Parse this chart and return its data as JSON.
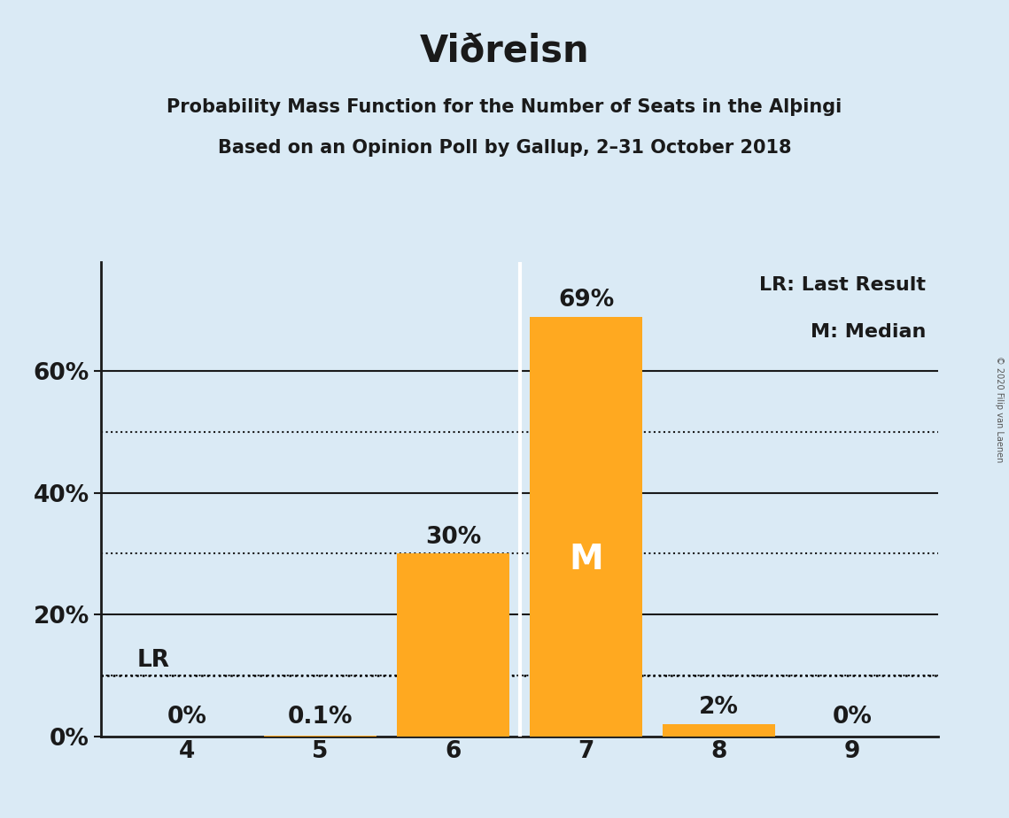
{
  "title": "Viðreisn",
  "subtitle1": "Probability Mass Function for the Number of Seats in the Alþingi",
  "subtitle2": "Based on an Opinion Poll by Gallup, 2–31 October 2018",
  "copyright": "© 2020 Filip van Laenen",
  "categories": [
    4,
    5,
    6,
    7,
    8,
    9
  ],
  "values": [
    0.0,
    0.001,
    0.3,
    0.69,
    0.02,
    0.0
  ],
  "labels": [
    "0%",
    "0.1%",
    "30%",
    "69%",
    "2%",
    "0%"
  ],
  "bar_color": "#FFA920",
  "background_color": "#daeaf5",
  "lr_value": 0.1,
  "lr_label": "LR",
  "median_bar_index": 3,
  "median_label": "M",
  "legend_lr": "LR: Last Result",
  "legend_m": "M: Median",
  "yticks_solid": [
    0.0,
    0.2,
    0.4,
    0.6
  ],
  "yticks_dotted": [
    0.1,
    0.3,
    0.5
  ],
  "ylim": [
    0,
    0.78
  ],
  "separator_between": [
    6,
    7
  ],
  "title_fontsize": 30,
  "subtitle_fontsize": 15,
  "label_fontsize": 19,
  "axis_fontsize": 19,
  "legend_fontsize": 16
}
